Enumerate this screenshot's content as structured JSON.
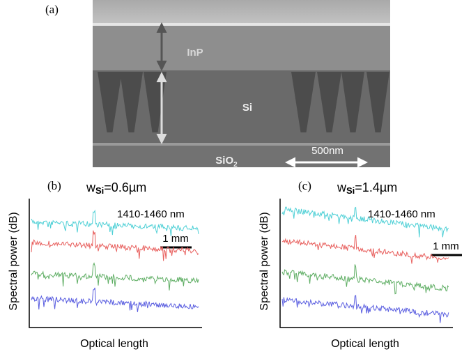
{
  "panel_a": {
    "label": "(a)",
    "top_layer": "InP",
    "middle_layer": "Si",
    "oxide": "SiO",
    "oxide_sub": "2",
    "scale_bar": "500nm"
  },
  "panel_b": {
    "label": "(b)",
    "width_symbol": "w",
    "width_sub": "Si",
    "width_value": "=0.6µm",
    "range": "1410-1460 nm",
    "scale_bar": "1 mm",
    "y_label": "Spectral power (dB)",
    "x_label": "Optical length",
    "trace_colors": [
      "#4fd0d6",
      "#e8605e",
      "#5fae64",
      "#5a5ee0"
    ]
  },
  "panel_c": {
    "label": "(c)",
    "width_symbol": "w",
    "width_sub": "Si",
    "width_value": "=1.4µm",
    "range": "1410-1460 nm",
    "scale_bar": "1 mm",
    "y_label": "Spectral power (dB)",
    "x_label": "Optical length",
    "trace_colors": [
      "#4fd0d6",
      "#e8605e",
      "#5fae64",
      "#5a5ee0"
    ]
  }
}
